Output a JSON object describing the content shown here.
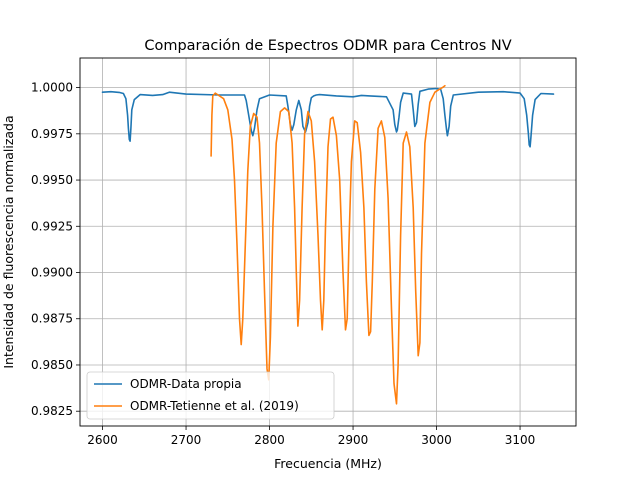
{
  "chart_data": {
    "type": "line",
    "title": "Comparación de Espectros ODMR para Centros NV",
    "xlabel": "Frecuencia (MHz)",
    "ylabel": "Intensidad de fluorescencia normalizada",
    "xlim": [
      2573,
      3167
    ],
    "ylim": [
      0.9817,
      1.0016
    ],
    "xticks": [
      2600,
      2700,
      2800,
      2900,
      3000,
      3100
    ],
    "yticks": [
      0.9825,
      0.985,
      0.9875,
      0.99,
      0.9925,
      0.995,
      0.9975,
      1.0
    ],
    "ytick_labels": [
      "0.9825",
      "0.9850",
      "0.9875",
      "0.9900",
      "0.9925",
      "0.9950",
      "0.9975",
      "1.0000"
    ],
    "grid": true,
    "legend_position": "lower-left",
    "series": [
      {
        "name": "ODMR-Data propia",
        "color": "#1f77b4",
        "x": [
          2600,
          2610,
          2620,
          2625,
          2628,
          2630,
          2631,
          2632,
          2633,
          2634,
          2635,
          2638,
          2645,
          2660,
          2672,
          2680,
          2700,
          2740,
          2770,
          2772,
          2775,
          2778,
          2780,
          2782,
          2785,
          2788,
          2800,
          2820,
          2822,
          2825,
          2827,
          2829,
          2832,
          2835,
          2838,
          2840,
          2843,
          2846,
          2848,
          2850,
          2853,
          2856,
          2860,
          2880,
          2900,
          2910,
          2920,
          2940,
          2948,
          2950,
          2952,
          2953,
          2955,
          2957,
          2960,
          2970,
          2972,
          2974,
          2976,
          2978,
          2980,
          2990,
          3000,
          3005,
          3008,
          3010,
          3012,
          3013,
          3015,
          3017,
          3020,
          3050,
          3080,
          3100,
          3105,
          3108,
          3110,
          3111,
          3112,
          3113,
          3115,
          3118,
          3125,
          3140
        ],
        "y": [
          0.99975,
          0.99978,
          0.99974,
          0.99968,
          0.9994,
          0.9985,
          0.9978,
          0.9972,
          0.9971,
          0.9978,
          0.9988,
          0.99935,
          0.99962,
          0.99958,
          0.99962,
          0.99975,
          0.99965,
          0.9996,
          0.9996,
          0.9993,
          0.9985,
          0.9977,
          0.9974,
          0.9978,
          0.9988,
          0.9994,
          0.9996,
          0.99955,
          0.999,
          0.998,
          0.9977,
          0.998,
          0.9988,
          0.9993,
          0.9988,
          0.9979,
          0.9976,
          0.9981,
          0.999,
          0.99945,
          0.99955,
          0.9996,
          0.99962,
          0.99955,
          0.9995,
          0.99958,
          0.99955,
          0.9995,
          0.9988,
          0.998,
          0.9976,
          0.9977,
          0.9984,
          0.9992,
          0.9997,
          0.99965,
          0.9988,
          0.9979,
          0.9981,
          0.9991,
          0.9998,
          0.99992,
          0.99995,
          0.9999,
          0.9994,
          0.9985,
          0.9977,
          0.9974,
          0.9979,
          0.999,
          0.9996,
          0.99975,
          0.99978,
          0.9997,
          0.9994,
          0.9985,
          0.9975,
          0.9969,
          0.9968,
          0.9973,
          0.9985,
          0.99935,
          0.99968,
          0.99965
        ]
      },
      {
        "name": "ODMR-Tetienne et al. (2019)",
        "color": "#ff7f0e",
        "x": [
          2730,
          2731,
          2732,
          2735,
          2740,
          2745,
          2750,
          2755,
          2758,
          2761,
          2764,
          2766,
          2768,
          2771,
          2774,
          2777,
          2781,
          2785,
          2788,
          2791,
          2794,
          2797,
          2799,
          2801,
          2804,
          2808,
          2813,
          2818,
          2823,
          2827,
          2830,
          2832,
          2834,
          2836,
          2839,
          2842,
          2846,
          2850,
          2854,
          2858,
          2861,
          2863,
          2865,
          2867,
          2870,
          2873,
          2876,
          2880,
          2884,
          2888,
          2891,
          2893,
          2895,
          2898,
          2902,
          2905,
          2909,
          2913,
          2916,
          2919,
          2921,
          2923,
          2926,
          2930,
          2934,
          2938,
          2942,
          2946,
          2949,
          2952,
          2954,
          2957,
          2960,
          2964,
          2968,
          2972,
          2975,
          2978,
          2980,
          2982,
          2986,
          2992,
          2998,
          3003,
          3007,
          3010
        ],
        "y": [
          0.9963,
          0.9985,
          0.99955,
          0.9997,
          0.99955,
          0.9994,
          0.9988,
          0.9972,
          0.995,
          0.9915,
          0.9875,
          0.9861,
          0.9875,
          0.9915,
          0.9955,
          0.9979,
          0.9986,
          0.9984,
          0.997,
          0.9935,
          0.989,
          0.9848,
          0.9842,
          0.9865,
          0.9925,
          0.997,
          0.9987,
          0.9989,
          0.9987,
          0.997,
          0.9935,
          0.99,
          0.9871,
          0.9885,
          0.9935,
          0.9975,
          0.9987,
          0.9982,
          0.996,
          0.992,
          0.9885,
          0.9869,
          0.9885,
          0.9925,
          0.9968,
          0.9983,
          0.9984,
          0.9974,
          0.995,
          0.99,
          0.9869,
          0.9875,
          0.9915,
          0.996,
          0.9982,
          0.9981,
          0.9965,
          0.9935,
          0.9895,
          0.9866,
          0.9868,
          0.9895,
          0.9945,
          0.9978,
          0.9982,
          0.9973,
          0.994,
          0.988,
          0.984,
          0.9829,
          0.985,
          0.992,
          0.997,
          0.9976,
          0.9968,
          0.9935,
          0.989,
          0.9855,
          0.9862,
          0.991,
          0.997,
          0.9992,
          0.99975,
          0.9999,
          1.0,
          1.0001
        ]
      }
    ]
  }
}
